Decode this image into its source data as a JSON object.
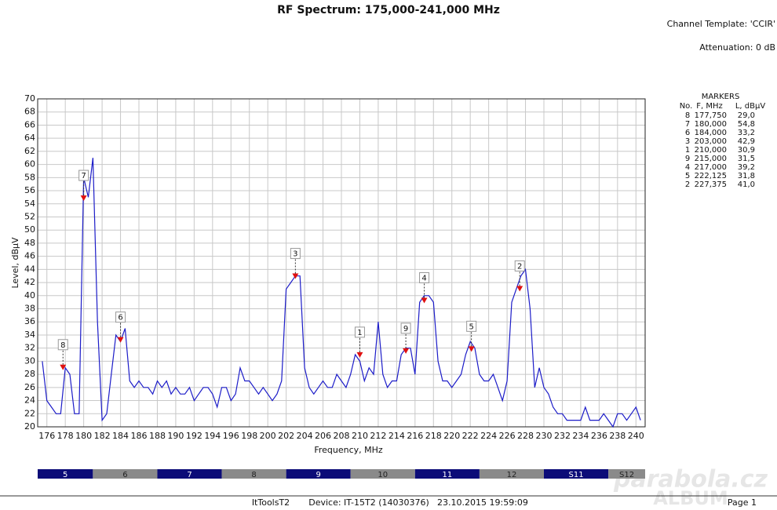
{
  "chart_data": {
    "type": "line",
    "title": "RF Spectrum:  175,000-241,000 MHz",
    "channel_template": "Channel Template: 'CCIR'",
    "attenuation": "Attenuation: 0 dB",
    "x_label": "Frequency, MHz",
    "y_label": "Level, dBµV",
    "xlim": [
      175,
      241
    ],
    "ylim": [
      20,
      70
    ],
    "xticks": [
      176,
      178,
      180,
      182,
      184,
      186,
      188,
      190,
      192,
      194,
      196,
      198,
      200,
      202,
      204,
      206,
      208,
      210,
      212,
      214,
      216,
      218,
      220,
      222,
      224,
      226,
      228,
      230,
      232,
      234,
      236,
      238,
      240
    ],
    "yticks": [
      20,
      22,
      24,
      26,
      28,
      30,
      32,
      34,
      36,
      38,
      40,
      42,
      44,
      46,
      48,
      50,
      52,
      54,
      56,
      58,
      60,
      62,
      64,
      66,
      68,
      70
    ],
    "grid": true,
    "color": "#1c1cc8",
    "x": [
      175.5,
      176,
      176.5,
      177,
      177.5,
      178,
      178.5,
      179,
      179.5,
      180,
      180.5,
      181,
      181.5,
      182,
      182.5,
      183,
      183.5,
      184,
      184.5,
      185,
      185.5,
      186,
      186.5,
      187,
      187.5,
      188,
      188.5,
      189,
      189.5,
      190,
      190.5,
      191,
      191.5,
      192,
      192.5,
      193,
      193.5,
      194,
      194.5,
      195,
      195.5,
      196,
      196.5,
      197,
      197.5,
      198,
      198.5,
      199,
      199.5,
      200,
      200.5,
      201,
      201.5,
      202,
      202.5,
      203,
      203.5,
      204,
      204.5,
      205,
      205.5,
      206,
      206.5,
      207,
      207.5,
      208,
      208.5,
      209,
      209.5,
      210,
      210.5,
      211,
      211.5,
      212,
      212.5,
      213,
      213.5,
      214,
      214.5,
      215,
      215.5,
      216,
      216.5,
      217,
      217.5,
      218,
      218.5,
      219,
      219.5,
      220,
      220.5,
      221,
      221.5,
      222,
      222.5,
      223,
      223.5,
      224,
      224.5,
      225,
      225.5,
      226,
      226.5,
      227,
      227.5,
      228,
      228.5,
      229,
      229.5,
      230,
      230.5,
      231,
      231.5,
      232,
      232.5,
      233,
      233.5,
      234,
      234.5,
      235,
      235.5,
      236,
      236.5,
      237,
      237.5,
      238,
      238.5,
      239,
      239.5,
      240,
      240.5
    ],
    "values": [
      30,
      24,
      23,
      22,
      22,
      29,
      28,
      22,
      22,
      58,
      55,
      61,
      36,
      21,
      22,
      28,
      34,
      33,
      35,
      27,
      26,
      27,
      26,
      26,
      25,
      27,
      26,
      27,
      25,
      26,
      25,
      25,
      26,
      24,
      25,
      26,
      26,
      25,
      23,
      26,
      26,
      24,
      25,
      29,
      27,
      27,
      26,
      25,
      26,
      25,
      24,
      25,
      27,
      41,
      42,
      43,
      43,
      29,
      26,
      25,
      26,
      27,
      26,
      26,
      28,
      27,
      26,
      28,
      31,
      30,
      27,
      29,
      28,
      36,
      28,
      26,
      27,
      27,
      31,
      32,
      32,
      28,
      39,
      40,
      40,
      39,
      30,
      27,
      27,
      26,
      27,
      28,
      31,
      33,
      32,
      28,
      27,
      27,
      28,
      26,
      24,
      27,
      39,
      41,
      43,
      44,
      38,
      26,
      29,
      26,
      25,
      23,
      22,
      22,
      21,
      21,
      21,
      21,
      23,
      21,
      21,
      21,
      22,
      21,
      20,
      22,
      22,
      21,
      22,
      23,
      21
    ],
    "markers": {
      "title": "MARKERS",
      "headers": [
        "No.",
        "F, MHz",
        "L, dBµV"
      ],
      "color": "#e01010",
      "labels": [
        "8",
        "7",
        "6",
        "3",
        "1",
        "9",
        "4",
        "5",
        "2"
      ],
      "x": [
        177.75,
        180,
        184,
        203,
        210,
        215,
        217,
        222.125,
        227.375
      ],
      "x_labels": [
        "177,750",
        "180,000",
        "184,000",
        "203,000",
        "210,000",
        "215,000",
        "217,000",
        "222,125",
        "227,375"
      ],
      "values": [
        29.0,
        54.8,
        33.2,
        42.9,
        30.9,
        31.5,
        39.2,
        31.8,
        41.0
      ],
      "value_labels": [
        "29,0",
        "54,8",
        "33,2",
        "42,9",
        "30,9",
        "31,5",
        "39,2",
        "31,8",
        "41,0"
      ]
    },
    "channels": {
      "categories": [
        "5",
        "6",
        "7",
        "8",
        "9",
        "10",
        "11",
        "12",
        "S11",
        "S12"
      ],
      "edges": [
        175,
        181,
        188,
        195,
        202,
        209,
        216,
        223,
        230,
        237,
        241
      ],
      "colors": [
        "#0c0c78",
        "#8a8a8a"
      ]
    },
    "footer": {
      "app": "ItToolsT2",
      "device": "Device: IT-15T2 (14030376)",
      "date": "23.10.2015 19:59:09",
      "page": "Page 1"
    },
    "watermark": [
      "parabola.cz",
      "ALBUM"
    ]
  }
}
